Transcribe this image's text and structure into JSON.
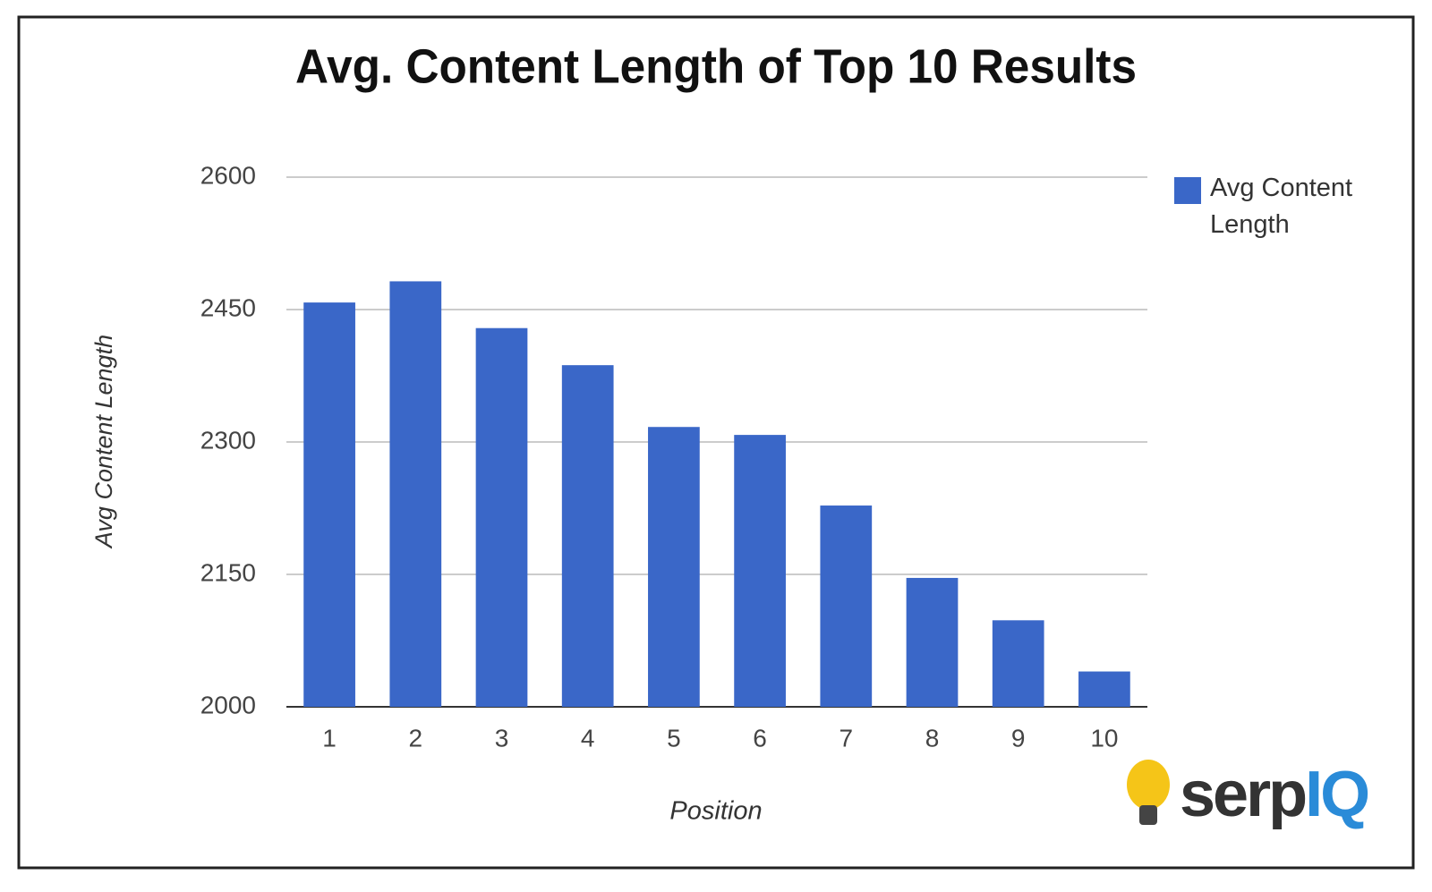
{
  "chart_data": {
    "type": "bar",
    "title": "Avg. Content Length of Top 10 Results",
    "x_label": "Position",
    "y_label": "Avg Content Length",
    "categories": [
      "1",
      "2",
      "3",
      "4",
      "5",
      "6",
      "7",
      "8",
      "9",
      "10"
    ],
    "series": [
      {
        "name": "Avg Content Length",
        "color": "#3a67c8",
        "values": [
          2458,
          2482,
          2429,
          2387,
          2317,
          2308,
          2228,
          2146,
          2098,
          2040
        ]
      }
    ],
    "ylim": [
      2000,
      2600
    ],
    "yticks": [
      2000,
      2150,
      2300,
      2450,
      2600
    ],
    "grid": true,
    "legend": "right"
  },
  "logo": {
    "dark": "serp",
    "blue": "IQ"
  }
}
